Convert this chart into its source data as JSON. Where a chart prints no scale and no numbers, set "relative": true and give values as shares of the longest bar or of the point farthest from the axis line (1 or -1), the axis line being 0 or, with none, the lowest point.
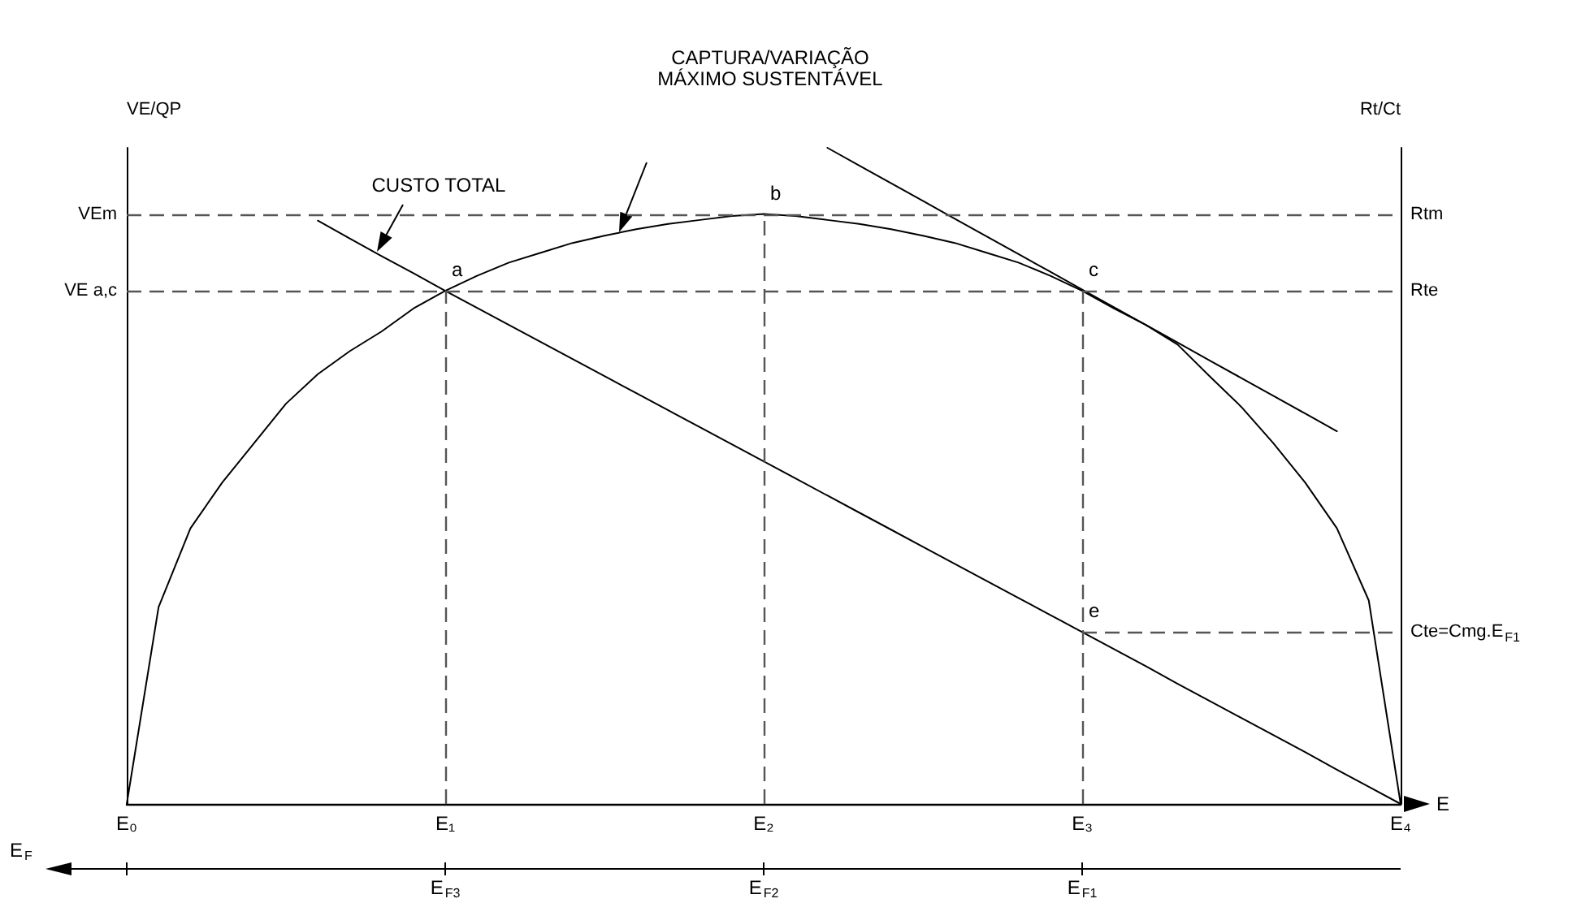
{
  "chart_data": {
    "type": "line",
    "relative": true,
    "xlabel": "E",
    "ylabel": "VE/QP",
    "y2label": "Rt/Ct",
    "categories": [
      "E₀",
      null,
      null,
      null,
      null,
      null,
      null,
      null,
      null,
      null,
      "E₁",
      null,
      null,
      null,
      null,
      null,
      null,
      null,
      null,
      null,
      "E₂",
      null,
      null,
      null,
      null,
      null,
      null,
      null,
      null,
      null,
      "E₃",
      null,
      null,
      null,
      null,
      null,
      null,
      null,
      null,
      null,
      "E₄"
    ],
    "series": [
      {
        "color": "#000000",
        "values": [
          0,
          0.3,
          0.42,
          0.49,
          0.55,
          0.61,
          0.655,
          0.69,
          0.72,
          0.755,
          0.782,
          0.805,
          0.825,
          0.84,
          0.855,
          0.866,
          0.876,
          0.884,
          0.89,
          0.896,
          0.899,
          0.896,
          0.89,
          0.884,
          0.876,
          0.866,
          0.855,
          0.84,
          0.825,
          0.805,
          0.782,
          0.755,
          0.73,
          0.7,
          0.652,
          0.605,
          0.55,
          0.49,
          0.42,
          0.31,
          0
        ]
      },
      {
        "color": "#000000",
        "values": [
          null,
          null,
          null,
          null,
          null,
          null,
          0.889,
          0.862,
          0.835,
          0.809,
          0.782,
          0.756,
          0.73,
          0.704,
          0.678,
          0.652,
          0.626,
          0.6,
          0.574,
          0.548,
          0.522,
          0.496,
          0.47,
          0.444,
          0.418,
          0.392,
          0.366,
          0.34,
          0.314,
          0.288,
          0.262,
          0.236,
          0.21,
          0.183,
          0.157,
          0.131,
          0.105,
          0.079,
          0.052,
          0.026,
          0
        ]
      },
      {
        "color": "#000000",
        "values": [
          null,
          null,
          null,
          null,
          null,
          null,
          null,
          null,
          null,
          null,
          null,
          null,
          null,
          null,
          null,
          null,
          null,
          null,
          null,
          null,
          null,
          null,
          1,
          0.973,
          0.946,
          0.919,
          0.892,
          0.865,
          0.838,
          0.811,
          0.784,
          0.757,
          0.73,
          0.703,
          0.676,
          0.649,
          0.622,
          0.595,
          0.568,
          null,
          null
        ]
      }
    ],
    "ref_lines": [
      {
        "axis": "y",
        "value": 0.899,
        "label": "VEm",
        "color": "#555555",
        "line_style": "dashed"
      },
      {
        "axis": "y",
        "value": 0.782,
        "label": "VE a,c",
        "color": "#555555",
        "line_style": "dashed"
      },
      {
        "axis": "y",
        "value": 0.262,
        "label": "Cte=Cmg.E$_{F1}$",
        "color": "#555555",
        "line_style": "dashed"
      },
      {
        "axis": "x",
        "value": "E₁",
        "color": "#555555",
        "line_style": "dashed"
      },
      {
        "axis": "x",
        "value": "E₂",
        "color": "#555555",
        "line_style": "dashed"
      },
      {
        "axis": "x",
        "value": "E₃",
        "color": "#555555",
        "line_style": "dashed"
      }
    ],
    "annotations": [
      "CUSTO TOTAL",
      "CAPTURA/VARIAÇÃO\nMÁXIMO SUSTENTÁVEL",
      {
        "text": "a",
        "x": "E₁",
        "y": 0.782
      },
      {
        "text": "b",
        "x": "E₂",
        "y": 0.899
      },
      {
        "text": "c",
        "x": "E₃",
        "y": 0.782
      },
      {
        "text": "e",
        "x": "E₃",
        "y": 0.262
      },
      "E$_{F3}$",
      "E$_{F2}$",
      "E$_{F1}$",
      "E$_{F}$",
      "Rtm",
      "Rte"
    ],
    "grid": false,
    "marker": "none",
    "line_style": "solid"
  }
}
